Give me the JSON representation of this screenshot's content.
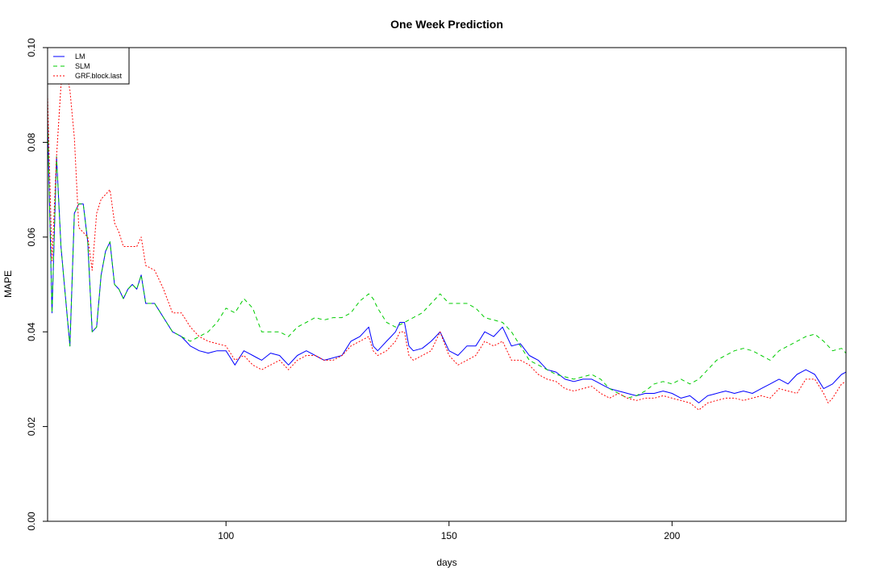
{
  "chart_data": {
    "type": "line",
    "title": "One Week Prediction",
    "xlabel": "days",
    "ylabel": "MAPE",
    "xlim": [
      60,
      239
    ],
    "ylim": [
      0,
      0.1
    ],
    "x_ticks": [
      100,
      150,
      200
    ],
    "x_tick_labels": [
      "100",
      "150",
      "200"
    ],
    "y_ticks": [
      0,
      0.02,
      0.04,
      0.06,
      0.08,
      0.1
    ],
    "y_tick_labels": [
      "0.00",
      "0.02",
      "0.04",
      "0.06",
      "0.08",
      "0.10"
    ],
    "grid": false,
    "legend_position": "top-left",
    "x_start": 60,
    "x_step": 1,
    "series": [
      {
        "name": "LM",
        "color": "#0000ff",
        "dash": "solid",
        "anchors": [
          [
            60,
            0.085
          ],
          [
            61,
            0.044
          ],
          [
            62,
            0.077
          ],
          [
            63,
            0.058
          ],
          [
            65,
            0.037
          ],
          [
            66,
            0.065
          ],
          [
            67,
            0.067
          ],
          [
            68,
            0.067
          ],
          [
            69,
            0.059
          ],
          [
            70,
            0.04
          ],
          [
            71,
            0.041
          ],
          [
            72,
            0.052
          ],
          [
            73,
            0.057
          ],
          [
            74,
            0.059
          ],
          [
            75,
            0.05
          ],
          [
            76,
            0.049
          ],
          [
            77,
            0.047
          ],
          [
            78,
            0.049
          ],
          [
            79,
            0.05
          ],
          [
            80,
            0.049
          ],
          [
            81,
            0.052
          ],
          [
            82,
            0.046
          ],
          [
            84,
            0.046
          ],
          [
            86,
            0.043
          ],
          [
            88,
            0.04
          ],
          [
            90,
            0.039
          ],
          [
            92,
            0.037
          ],
          [
            94,
            0.036
          ],
          [
            96,
            0.0355
          ],
          [
            98,
            0.036
          ],
          [
            100,
            0.036
          ],
          [
            102,
            0.033
          ],
          [
            104,
            0.036
          ],
          [
            106,
            0.035
          ],
          [
            108,
            0.034
          ],
          [
            110,
            0.0355
          ],
          [
            112,
            0.035
          ],
          [
            114,
            0.033
          ],
          [
            116,
            0.035
          ],
          [
            118,
            0.036
          ],
          [
            120,
            0.035
          ],
          [
            122,
            0.034
          ],
          [
            124,
            0.0345
          ],
          [
            126,
            0.035
          ],
          [
            128,
            0.038
          ],
          [
            130,
            0.039
          ],
          [
            132,
            0.041
          ],
          [
            133,
            0.037
          ],
          [
            134,
            0.036
          ],
          [
            136,
            0.038
          ],
          [
            138,
            0.04
          ],
          [
            139,
            0.042
          ],
          [
            140,
            0.042
          ],
          [
            141,
            0.037
          ],
          [
            142,
            0.036
          ],
          [
            144,
            0.0365
          ],
          [
            146,
            0.038
          ],
          [
            148,
            0.04
          ],
          [
            150,
            0.036
          ],
          [
            152,
            0.035
          ],
          [
            154,
            0.037
          ],
          [
            156,
            0.037
          ],
          [
            158,
            0.04
          ],
          [
            160,
            0.039
          ],
          [
            162,
            0.041
          ],
          [
            164,
            0.037
          ],
          [
            166,
            0.0375
          ],
          [
            168,
            0.035
          ],
          [
            170,
            0.034
          ],
          [
            172,
            0.032
          ],
          [
            174,
            0.0315
          ],
          [
            176,
            0.03
          ],
          [
            178,
            0.0295
          ],
          [
            180,
            0.03
          ],
          [
            182,
            0.03
          ],
          [
            184,
            0.029
          ],
          [
            186,
            0.028
          ],
          [
            188,
            0.0275
          ],
          [
            190,
            0.027
          ],
          [
            192,
            0.0265
          ],
          [
            194,
            0.027
          ],
          [
            196,
            0.027
          ],
          [
            198,
            0.0275
          ],
          [
            200,
            0.027
          ],
          [
            202,
            0.026
          ],
          [
            204,
            0.0265
          ],
          [
            206,
            0.025
          ],
          [
            208,
            0.0265
          ],
          [
            210,
            0.027
          ],
          [
            212,
            0.0275
          ],
          [
            214,
            0.027
          ],
          [
            216,
            0.0275
          ],
          [
            218,
            0.027
          ],
          [
            220,
            0.028
          ],
          [
            222,
            0.029
          ],
          [
            224,
            0.03
          ],
          [
            226,
            0.029
          ],
          [
            228,
            0.031
          ],
          [
            230,
            0.032
          ],
          [
            232,
            0.031
          ],
          [
            234,
            0.028
          ],
          [
            236,
            0.029
          ],
          [
            238,
            0.031
          ],
          [
            239,
            0.0315
          ]
        ]
      },
      {
        "name": "SLM",
        "color": "#00cc00",
        "dash": "5,4",
        "anchors": [
          [
            60,
            0.085
          ],
          [
            61,
            0.044
          ],
          [
            62,
            0.077
          ],
          [
            63,
            0.058
          ],
          [
            65,
            0.037
          ],
          [
            66,
            0.065
          ],
          [
            67,
            0.067
          ],
          [
            68,
            0.067
          ],
          [
            69,
            0.059
          ],
          [
            70,
            0.04
          ],
          [
            71,
            0.041
          ],
          [
            72,
            0.052
          ],
          [
            73,
            0.057
          ],
          [
            74,
            0.059
          ],
          [
            75,
            0.05
          ],
          [
            76,
            0.049
          ],
          [
            77,
            0.047
          ],
          [
            78,
            0.049
          ],
          [
            79,
            0.05
          ],
          [
            80,
            0.049
          ],
          [
            81,
            0.052
          ],
          [
            82,
            0.046
          ],
          [
            84,
            0.046
          ],
          [
            86,
            0.043
          ],
          [
            88,
            0.04
          ],
          [
            90,
            0.039
          ],
          [
            92,
            0.038
          ],
          [
            94,
            0.039
          ],
          [
            96,
            0.04
          ],
          [
            98,
            0.042
          ],
          [
            100,
            0.045
          ],
          [
            102,
            0.044
          ],
          [
            104,
            0.047
          ],
          [
            106,
            0.045
          ],
          [
            108,
            0.04
          ],
          [
            110,
            0.04
          ],
          [
            112,
            0.04
          ],
          [
            114,
            0.039
          ],
          [
            116,
            0.041
          ],
          [
            118,
            0.042
          ],
          [
            120,
            0.043
          ],
          [
            122,
            0.0425
          ],
          [
            124,
            0.043
          ],
          [
            126,
            0.043
          ],
          [
            128,
            0.044
          ],
          [
            130,
            0.0465
          ],
          [
            132,
            0.048
          ],
          [
            133,
            0.047
          ],
          [
            134,
            0.045
          ],
          [
            136,
            0.042
          ],
          [
            138,
            0.041
          ],
          [
            140,
            0.042
          ],
          [
            142,
            0.043
          ],
          [
            144,
            0.044
          ],
          [
            146,
            0.046
          ],
          [
            148,
            0.048
          ],
          [
            150,
            0.046
          ],
          [
            152,
            0.046
          ],
          [
            154,
            0.046
          ],
          [
            156,
            0.045
          ],
          [
            158,
            0.043
          ],
          [
            160,
            0.0425
          ],
          [
            162,
            0.042
          ],
          [
            164,
            0.04
          ],
          [
            166,
            0.037
          ],
          [
            168,
            0.034
          ],
          [
            170,
            0.033
          ],
          [
            172,
            0.032
          ],
          [
            174,
            0.031
          ],
          [
            176,
            0.0305
          ],
          [
            178,
            0.03
          ],
          [
            180,
            0.0305
          ],
          [
            182,
            0.031
          ],
          [
            184,
            0.03
          ],
          [
            186,
            0.028
          ],
          [
            188,
            0.027
          ],
          [
            190,
            0.026
          ],
          [
            192,
            0.0265
          ],
          [
            194,
            0.0275
          ],
          [
            196,
            0.029
          ],
          [
            198,
            0.0295
          ],
          [
            200,
            0.029
          ],
          [
            202,
            0.03
          ],
          [
            204,
            0.029
          ],
          [
            206,
            0.03
          ],
          [
            208,
            0.032
          ],
          [
            210,
            0.034
          ],
          [
            212,
            0.035
          ],
          [
            214,
            0.036
          ],
          [
            216,
            0.0365
          ],
          [
            218,
            0.036
          ],
          [
            220,
            0.035
          ],
          [
            222,
            0.034
          ],
          [
            224,
            0.036
          ],
          [
            226,
            0.037
          ],
          [
            228,
            0.038
          ],
          [
            230,
            0.039
          ],
          [
            232,
            0.0395
          ],
          [
            234,
            0.038
          ],
          [
            236,
            0.036
          ],
          [
            238,
            0.0365
          ],
          [
            239,
            0.0355
          ]
        ]
      },
      {
        "name": "GRF.block.last",
        "color": "#ff0000",
        "dash": "2,2",
        "anchors": [
          [
            60,
            0.09
          ],
          [
            61,
            0.055
          ],
          [
            62,
            0.077
          ],
          [
            63,
            0.092
          ],
          [
            64,
            0.096
          ],
          [
            65,
            0.091
          ],
          [
            66,
            0.081
          ],
          [
            67,
            0.062
          ],
          [
            68,
            0.061
          ],
          [
            69,
            0.06
          ],
          [
            70,
            0.053
          ],
          [
            71,
            0.065
          ],
          [
            72,
            0.068
          ],
          [
            73,
            0.069
          ],
          [
            74,
            0.07
          ],
          [
            75,
            0.063
          ],
          [
            76,
            0.061
          ],
          [
            77,
            0.058
          ],
          [
            78,
            0.058
          ],
          [
            80,
            0.058
          ],
          [
            81,
            0.06
          ],
          [
            82,
            0.054
          ],
          [
            84,
            0.053
          ],
          [
            86,
            0.049
          ],
          [
            88,
            0.044
          ],
          [
            90,
            0.044
          ],
          [
            92,
            0.041
          ],
          [
            94,
            0.039
          ],
          [
            96,
            0.038
          ],
          [
            98,
            0.0375
          ],
          [
            100,
            0.037
          ],
          [
            102,
            0.034
          ],
          [
            104,
            0.035
          ],
          [
            106,
            0.033
          ],
          [
            108,
            0.032
          ],
          [
            110,
            0.033
          ],
          [
            112,
            0.034
          ],
          [
            114,
            0.032
          ],
          [
            116,
            0.034
          ],
          [
            118,
            0.035
          ],
          [
            120,
            0.035
          ],
          [
            122,
            0.034
          ],
          [
            124,
            0.034
          ],
          [
            126,
            0.035
          ],
          [
            128,
            0.037
          ],
          [
            130,
            0.038
          ],
          [
            132,
            0.039
          ],
          [
            133,
            0.036
          ],
          [
            134,
            0.035
          ],
          [
            136,
            0.036
          ],
          [
            138,
            0.038
          ],
          [
            139,
            0.04
          ],
          [
            140,
            0.04
          ],
          [
            141,
            0.035
          ],
          [
            142,
            0.034
          ],
          [
            144,
            0.035
          ],
          [
            146,
            0.036
          ],
          [
            148,
            0.04
          ],
          [
            150,
            0.035
          ],
          [
            152,
            0.033
          ],
          [
            154,
            0.034
          ],
          [
            156,
            0.035
          ],
          [
            158,
            0.038
          ],
          [
            160,
            0.037
          ],
          [
            162,
            0.038
          ],
          [
            164,
            0.034
          ],
          [
            166,
            0.034
          ],
          [
            168,
            0.033
          ],
          [
            170,
            0.031
          ],
          [
            172,
            0.03
          ],
          [
            174,
            0.0295
          ],
          [
            176,
            0.028
          ],
          [
            178,
            0.0275
          ],
          [
            180,
            0.028
          ],
          [
            182,
            0.0285
          ],
          [
            184,
            0.027
          ],
          [
            186,
            0.026
          ],
          [
            188,
            0.027
          ],
          [
            190,
            0.026
          ],
          [
            192,
            0.0255
          ],
          [
            194,
            0.026
          ],
          [
            196,
            0.026
          ],
          [
            198,
            0.0265
          ],
          [
            200,
            0.026
          ],
          [
            202,
            0.0255
          ],
          [
            204,
            0.025
          ],
          [
            206,
            0.0235
          ],
          [
            208,
            0.025
          ],
          [
            210,
            0.0255
          ],
          [
            212,
            0.026
          ],
          [
            214,
            0.026
          ],
          [
            216,
            0.0255
          ],
          [
            218,
            0.026
          ],
          [
            220,
            0.0265
          ],
          [
            222,
            0.026
          ],
          [
            224,
            0.028
          ],
          [
            226,
            0.0275
          ],
          [
            228,
            0.027
          ],
          [
            230,
            0.03
          ],
          [
            232,
            0.03
          ],
          [
            234,
            0.027
          ],
          [
            235,
            0.025
          ],
          [
            236,
            0.026
          ],
          [
            238,
            0.029
          ],
          [
            239,
            0.0295
          ]
        ]
      }
    ]
  }
}
